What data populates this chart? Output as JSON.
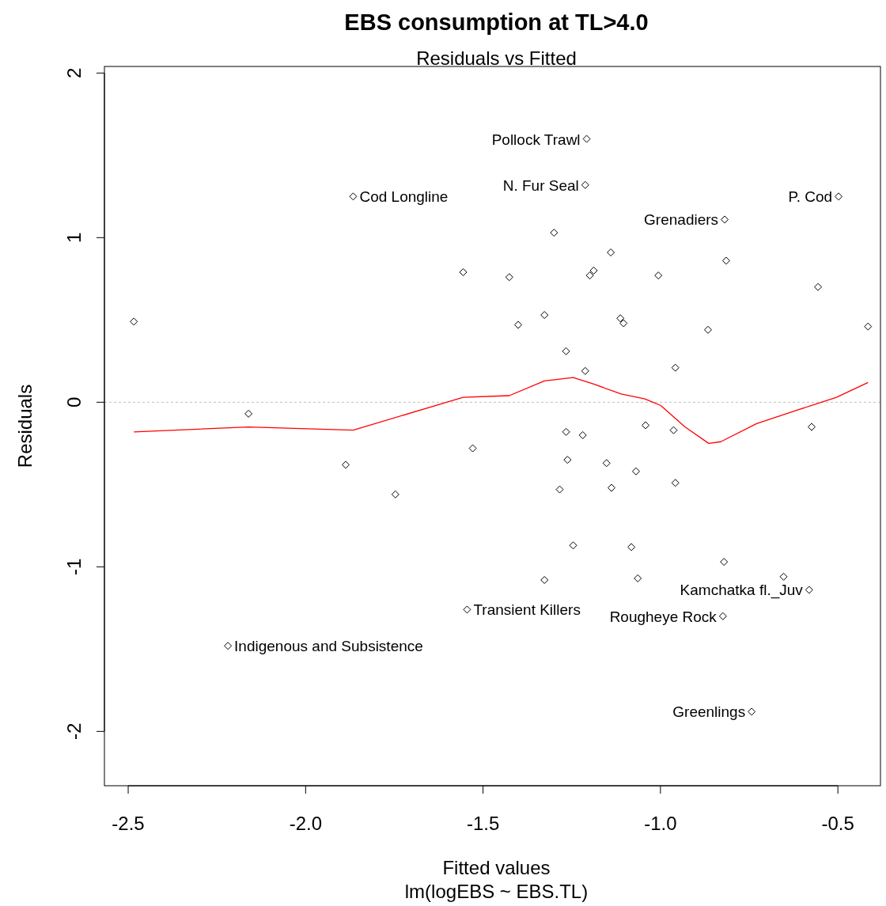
{
  "chart_data": {
    "type": "scatter",
    "title": "EBS consumption at TL>4.0",
    "subtitle": "Residuals vs Fitted",
    "xlabel": "Fitted values",
    "ylabel": "Residuals",
    "xlim": [
      -2.567,
      -0.38
    ],
    "ylim": [
      -2.33,
      2.04
    ],
    "xticks": [
      -2.5,
      {
        "value": -2,
        "label": "-2.0"
      },
      -1.5,
      {
        "value": -1,
        "label": "-1.0"
      },
      -0.5
    ],
    "yticks": [
      -2,
      -1,
      0,
      1,
      2
    ],
    "grid": false,
    "series": [
      {
        "color": "#000000",
        "marker": "diamond",
        "x": [
          -2.484,
          -2.161,
          -1.887,
          -1.866,
          -1.747,
          -2.219,
          -1.556,
          -1.529,
          -1.545,
          -1.426,
          -1.401,
          -1.327,
          -1.327,
          -1.3,
          -1.284,
          -1.266,
          -1.266,
          -1.262,
          -1.246,
          -1.208,
          -1.212,
          -1.212,
          -1.219,
          -1.199,
          -1.188,
          -1.14,
          -1.152,
          -1.138,
          -1.113,
          -1.104,
          -1.082,
          -1.069,
          -1.064,
          -1.042,
          -1.006,
          -0.958,
          -0.963,
          -0.958,
          -0.866,
          -0.819,
          -0.815,
          -0.821,
          -0.824,
          -0.743,
          -0.653,
          -0.574,
          -0.581,
          -0.556,
          -0.498,
          -0.415
        ],
        "values": [
          0.49,
          -0.07,
          -0.38,
          1.25,
          -0.56,
          -1.48,
          0.79,
          -0.28,
          -1.26,
          0.76,
          0.47,
          0.53,
          -1.08,
          1.03,
          -0.53,
          0.31,
          -0.18,
          -0.35,
          -0.87,
          1.6,
          1.32,
          0.19,
          -0.2,
          0.77,
          0.8,
          0.91,
          -0.37,
          -0.52,
          0.51,
          0.48,
          -0.88,
          -0.42,
          -1.07,
          -0.14,
          0.77,
          0.21,
          -0.17,
          -0.49,
          0.44,
          1.11,
          0.86,
          -0.97,
          -1.3,
          -1.88,
          -1.06,
          -0.15,
          -1.14,
          0.7,
          1.25,
          0.46
        ]
      },
      {
        "type": "line",
        "marker": "none",
        "color": "#ff0000",
        "x": [
          -2.484,
          -2.161,
          -1.866,
          -1.556,
          -1.426,
          -1.327,
          -1.246,
          -1.188,
          -1.111,
          -1.044,
          -0.999,
          -0.931,
          -0.864,
          -0.83,
          -0.729,
          -0.617,
          -0.504,
          -0.415
        ],
        "values": [
          -0.18,
          -0.15,
          -0.17,
          0.03,
          0.04,
          0.13,
          0.15,
          0.11,
          0.05,
          0.02,
          -0.02,
          -0.15,
          -0.25,
          -0.24,
          -0.13,
          -0.05,
          0.03,
          0.12
        ]
      }
    ],
    "ref_lines": [
      {
        "axis": "y",
        "value": 0,
        "color": "#bebebe",
        "line_style": "dotted"
      }
    ],
    "annotations": [
      {
        "text": "Pollock Trawl",
        "x": -1.208,
        "y": 1.6
      },
      {
        "text": "N. Fur Seal",
        "x": -1.212,
        "y": 1.32
      },
      {
        "text": "Cod Longline",
        "x": -1.866,
        "y": 1.25
      },
      {
        "text": "P. Cod",
        "x": -0.498,
        "y": 1.25
      },
      {
        "text": "Grenadiers",
        "x": -0.819,
        "y": 1.11
      },
      {
        "text": "Kamchatka fl._Juv",
        "x": -0.581,
        "y": -1.14
      },
      {
        "text": "Transient Killers",
        "x": -1.545,
        "y": -1.26
      },
      {
        "text": "Rougheye Rock",
        "x": -0.824,
        "y": -1.3
      },
      {
        "text": "Indigenous and Subsistence",
        "x": -2.219,
        "y": -1.48
      },
      {
        "text": "Greenlings",
        "x": -0.743,
        "y": -1.88
      },
      "lm(logEBS ~ EBS.TL)"
    ]
  }
}
